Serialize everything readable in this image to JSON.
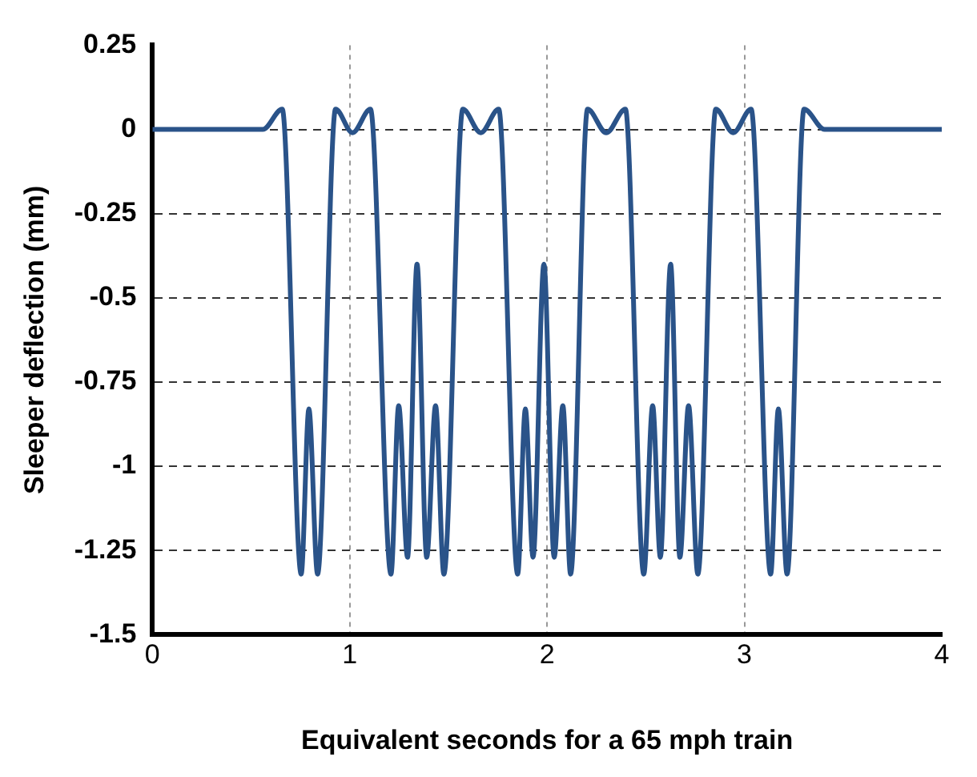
{
  "chart_data": {
    "type": "line",
    "xlabel": "Equivalent seconds for a 65 mph train",
    "ylabel": "Sleeper deflection (mm)",
    "x": [
      0,
      0.56,
      0.658,
      0.754,
      0.793,
      0.837,
      0.928,
      1.014,
      1.105,
      1.209,
      1.248,
      1.293,
      1.341,
      1.39,
      1.435,
      1.477,
      1.573,
      1.664,
      1.755,
      1.851,
      1.89,
      1.929,
      1.984,
      2.036,
      2.08,
      2.119,
      2.205,
      2.3,
      2.397,
      2.49,
      2.535,
      2.574,
      2.626,
      2.673,
      2.717,
      2.764,
      2.855,
      2.943,
      3.034,
      3.133,
      3.172,
      3.216,
      3.302,
      3.406,
      4
    ],
    "series": [
      {
        "color": "#2a5389",
        "values": [
          0,
          0,
          0.06,
          -1.32,
          -0.83,
          -1.32,
          0.06,
          -0.01,
          0.06,
          -1.32,
          -0.82,
          -1.27,
          -0.4,
          -1.27,
          -0.82,
          -1.32,
          0.06,
          -0.01,
          0.06,
          -1.32,
          -0.83,
          -1.27,
          -0.4,
          -1.27,
          -0.82,
          -1.32,
          0.06,
          -0.01,
          0.06,
          -1.32,
          -0.82,
          -1.27,
          -0.4,
          -1.27,
          -0.82,
          -1.32,
          0.06,
          -0.01,
          0.06,
          -1.32,
          -0.83,
          -1.32,
          0.06,
          0,
          0
        ]
      }
    ],
    "xlim": [
      0,
      4
    ],
    "xticks": [
      0,
      1,
      2,
      3,
      4
    ],
    "ylim": [
      -1.5,
      0.25
    ],
    "yticks": [
      -1.5,
      -1.25,
      -1,
      -0.75,
      -0.5,
      -0.25,
      0,
      0.25
    ],
    "grid": true,
    "legend": false,
    "marker": "none",
    "line_style": "solid"
  }
}
